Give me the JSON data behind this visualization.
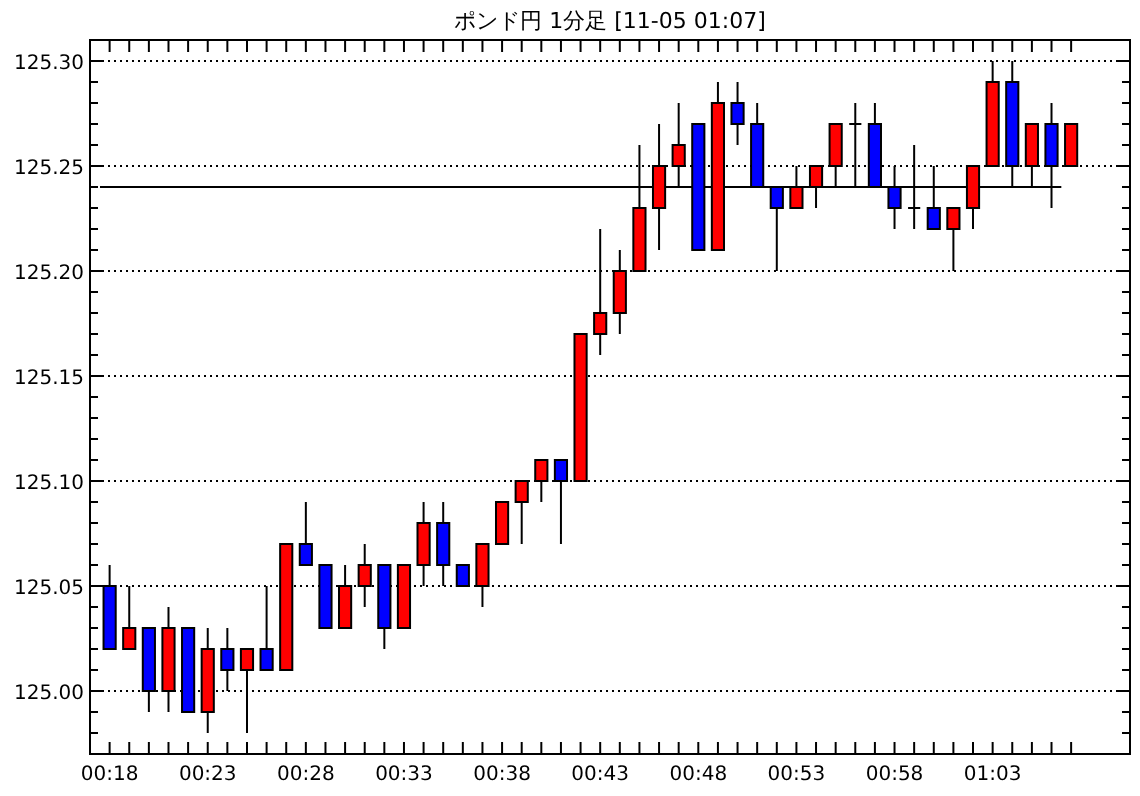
{
  "chart_data": {
    "type": "candlestick",
    "title": "ポンド円 1分足 [11-05 01:07]",
    "categories": [
      "00:18",
      null,
      null,
      null,
      null,
      "00:23",
      null,
      null,
      null,
      null,
      "00:28",
      null,
      null,
      null,
      null,
      "00:33",
      null,
      null,
      null,
      null,
      "00:38",
      null,
      null,
      null,
      null,
      "00:43",
      null,
      null,
      null,
      null,
      "00:48",
      null,
      null,
      null,
      null,
      "00:53",
      null,
      null,
      null,
      null,
      "00:58",
      null,
      null,
      null,
      null,
      "01:03",
      null,
      null,
      null,
      null
    ],
    "ohlc": [
      [
        125.05,
        125.06,
        125.02,
        125.02
      ],
      [
        125.02,
        125.05,
        125.02,
        125.03
      ],
      [
        125.03,
        125.03,
        124.99,
        125.0
      ],
      [
        125.0,
        125.04,
        124.99,
        125.03
      ],
      [
        125.03,
        125.03,
        124.99,
        124.99
      ],
      [
        124.99,
        125.03,
        124.98,
        125.02
      ],
      [
        125.02,
        125.03,
        125.0,
        125.01
      ],
      [
        125.01,
        125.02,
        124.98,
        125.02
      ],
      [
        125.02,
        125.05,
        125.01,
        125.01
      ],
      [
        125.01,
        125.07,
        125.01,
        125.07
      ],
      [
        125.07,
        125.09,
        125.06,
        125.06
      ],
      [
        125.06,
        125.06,
        125.03,
        125.03
      ],
      [
        125.03,
        125.06,
        125.03,
        125.05
      ],
      [
        125.05,
        125.07,
        125.04,
        125.06
      ],
      [
        125.06,
        125.06,
        125.02,
        125.03
      ],
      [
        125.03,
        125.06,
        125.03,
        125.06
      ],
      [
        125.06,
        125.09,
        125.05,
        125.08
      ],
      [
        125.08,
        125.09,
        125.05,
        125.06
      ],
      [
        125.06,
        125.06,
        125.05,
        125.05
      ],
      [
        125.05,
        125.07,
        125.04,
        125.07
      ],
      [
        125.07,
        125.09,
        125.07,
        125.09
      ],
      [
        125.09,
        125.1,
        125.07,
        125.1
      ],
      [
        125.1,
        125.11,
        125.09,
        125.11
      ],
      [
        125.11,
        125.11,
        125.07,
        125.1
      ],
      [
        125.1,
        125.17,
        125.1,
        125.17
      ],
      [
        125.17,
        125.22,
        125.16,
        125.18
      ],
      [
        125.18,
        125.21,
        125.17,
        125.2
      ],
      [
        125.2,
        125.26,
        125.2,
        125.23
      ],
      [
        125.23,
        125.27,
        125.21,
        125.25
      ],
      [
        125.25,
        125.28,
        125.24,
        125.26
      ],
      [
        125.27,
        125.27,
        125.21,
        125.21
      ],
      [
        125.21,
        125.29,
        125.21,
        125.28
      ],
      [
        125.28,
        125.29,
        125.26,
        125.27
      ],
      [
        125.27,
        125.28,
        125.24,
        125.24
      ],
      [
        125.24,
        125.24,
        125.2,
        125.23
      ],
      [
        125.23,
        125.25,
        125.23,
        125.24
      ],
      [
        125.24,
        125.25,
        125.23,
        125.25
      ],
      [
        125.25,
        125.27,
        125.24,
        125.27
      ],
      [
        125.27,
        125.28,
        125.24,
        125.27
      ],
      [
        125.27,
        125.28,
        125.24,
        125.24
      ],
      [
        125.24,
        125.25,
        125.22,
        125.23
      ],
      [
        125.23,
        125.26,
        125.22,
        125.23
      ],
      [
        125.23,
        125.25,
        125.22,
        125.22
      ],
      [
        125.22,
        125.23,
        125.2,
        125.23
      ],
      [
        125.23,
        125.25,
        125.22,
        125.25
      ],
      [
        125.25,
        125.3,
        125.25,
        125.29
      ],
      [
        125.29,
        125.3,
        125.24,
        125.25
      ],
      [
        125.25,
        125.27,
        125.24,
        125.27
      ],
      [
        125.27,
        125.28,
        125.23,
        125.25
      ],
      [
        125.25,
        125.27,
        125.25,
        125.27
      ]
    ],
    "colors": [
      "#0000ff",
      "#ff0000",
      "#0000ff",
      "#ff0000",
      "#0000ff",
      "#ff0000",
      "#0000ff",
      "#ff0000",
      "#0000ff",
      "#ff0000",
      "#0000ff",
      "#0000ff",
      "#ff0000",
      "#ff0000",
      "#0000ff",
      "#ff0000",
      "#ff0000",
      "#0000ff",
      "#0000ff",
      "#ff0000",
      "#ff0000",
      "#ff0000",
      "#ff0000",
      "#0000ff",
      "#ff0000",
      "#ff0000",
      "#ff0000",
      "#ff0000",
      "#ff0000",
      "#ff0000",
      "#0000ff",
      "#ff0000",
      "#0000ff",
      "#0000ff",
      "#0000ff",
      "#ff0000",
      "#ff0000",
      "#ff0000",
      null,
      "#0000ff",
      "#0000ff",
      null,
      "#0000ff",
      "#ff0000",
      "#ff0000",
      "#ff0000",
      "#0000ff",
      "#ff0000",
      "#0000ff",
      "#ff0000"
    ],
    "ylim": [
      124.97,
      125.31
    ],
    "yticks": [
      {
        "value": 125.0,
        "label": "125.00"
      },
      {
        "value": 125.05,
        "label": "125.05"
      },
      {
        "value": 125.1,
        "label": "125.10"
      },
      {
        "value": 125.15,
        "label": "125.15"
      },
      {
        "value": 125.2,
        "label": "125.20"
      },
      {
        "value": 125.25,
        "label": "125.25"
      },
      {
        "value": 125.3,
        "label": "125.30"
      }
    ],
    "grid": "y",
    "ref_lines": [
      {
        "axis": "y",
        "value": 125.24,
        "color": "#000000",
        "line_style": "solid"
      }
    ]
  }
}
